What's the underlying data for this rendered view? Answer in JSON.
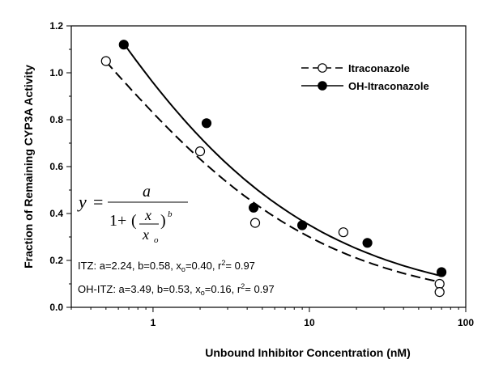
{
  "chart_data": {
    "type": "scatter",
    "xlabel": "Unbound Inhibitor Concentration (nM)",
    "ylabel": "Fraction of Remaining CYP3A Activity",
    "xscale": "log",
    "xlim": [
      0.3,
      100
    ],
    "ylim": [
      0.0,
      1.2
    ],
    "x_ticks": [
      1,
      10,
      100
    ],
    "x_tick_labels": [
      "1",
      "10",
      "100"
    ],
    "y_ticks": [
      0.0,
      0.2,
      0.4,
      0.6,
      0.8,
      1.0,
      1.2
    ],
    "y_tick_labels": [
      "0.0",
      "0.2",
      "0.4",
      "0.6",
      "0.8",
      "1.0",
      "1.2"
    ],
    "legend_position": "top-right",
    "series": [
      {
        "name": "Itraconazole",
        "marker": "open-circle",
        "line": "dashed",
        "x": [
          0.5,
          2.0,
          4.5,
          16.5,
          68.0,
          68.0
        ],
        "y": [
          1.05,
          0.665,
          0.36,
          0.32,
          0.1,
          0.065
        ],
        "fit": {
          "a": 2.24,
          "b": 0.58,
          "xo": 0.4
        }
      },
      {
        "name": "OH-Itraconazole",
        "marker": "filled-circle",
        "line": "solid",
        "x": [
          0.65,
          2.2,
          4.4,
          9.0,
          23.5,
          70.0
        ],
        "y": [
          1.12,
          0.785,
          0.425,
          0.35,
          0.275,
          0.15
        ],
        "fit": {
          "a": 3.49,
          "b": 0.53,
          "xo": 0.16
        }
      }
    ],
    "equation": {
      "y": "y",
      "numerator": "a",
      "one_plus": "1+",
      "x": "x",
      "x_o": "x",
      "o_sub": "o",
      "b_exp": "b"
    },
    "annotations": [
      {
        "prefix": "ITZ: a=2.24, b=0.58, x",
        "sub": "o",
        "mid": "=0.40, r",
        "sup": "2",
        "suffix": "= 0.97"
      },
      {
        "prefix": "OH-ITZ: a=3.49, b=0.53, x",
        "sub": "o",
        "mid": "=0.16, r",
        "sup": "2",
        "suffix": "= 0.97"
      }
    ]
  }
}
